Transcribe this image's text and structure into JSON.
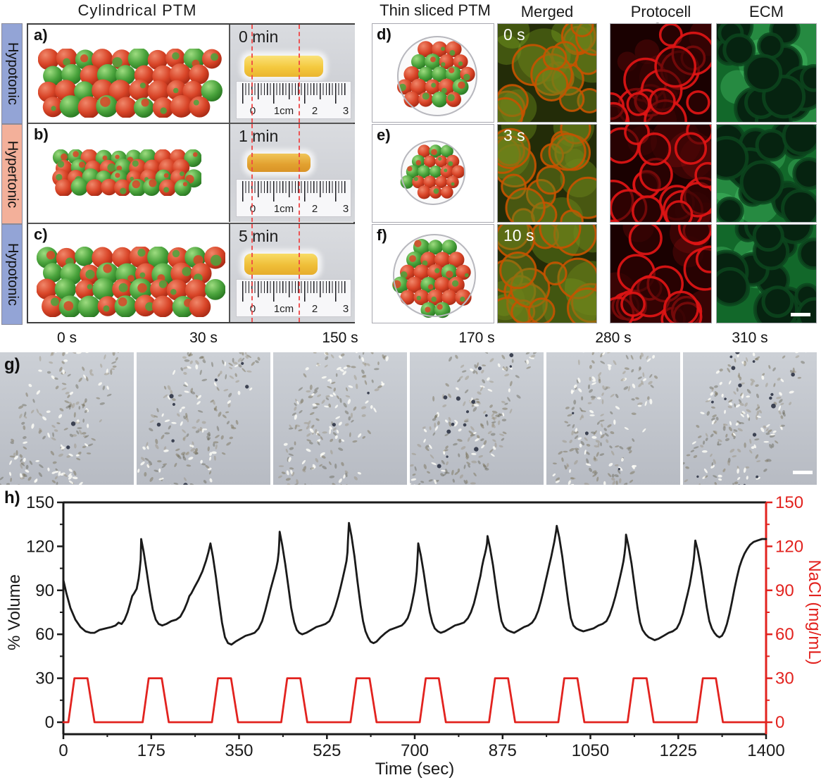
{
  "top": {
    "left": {
      "title": "Cylindrical  PTM",
      "side_labels": [
        {
          "text": "Hypotonic",
          "color": "#93a4d6"
        },
        {
          "text": "Hypertonic",
          "color": "#f3b09a"
        },
        {
          "text": "Hypotonic",
          "color": "#93a4d6"
        }
      ],
      "rows": [
        {
          "label": "a)",
          "time": "0 min"
        },
        {
          "label": "b)",
          "time": "1 min"
        },
        {
          "label": "c)",
          "time": "5 min"
        }
      ],
      "ruler_labels": [
        "0",
        "1cm",
        "2",
        "3"
      ]
    },
    "right": {
      "title": "Thin sliced PTM",
      "col_headers": [
        "Merged",
        "Protocell",
        "ECM"
      ],
      "stray_label": "s",
      "rows": [
        {
          "label": "d)",
          "time": "0 s"
        },
        {
          "label": "e)",
          "time": "3 s"
        },
        {
          "label": "f)",
          "time": "10 s"
        }
      ]
    }
  },
  "panel_g": {
    "label": "g)",
    "times": [
      "0 s",
      "30 s",
      "150 s",
      "170 s",
      "280 s",
      "310 s"
    ]
  },
  "colors": {
    "sphere_red": "#d84427",
    "sphere_green": "#4aa33c",
    "merged_ring": "#c55200",
    "protocell_ring": "#df1515",
    "ecm_green": "#12682a",
    "dashed_line": "#ef4444",
    "axis_black": "#1a1a1a",
    "axis_red": "#e2231f"
  },
  "chart_data": {
    "type": "line",
    "panel_label": "h)",
    "xlabel": "Time (sec)",
    "ylabel_left": "% Volume",
    "ylabel_right": "NaCl (mg/mL)",
    "xlim": [
      0,
      1400
    ],
    "ylim": [
      0,
      150
    ],
    "xticks": [
      0,
      175,
      350,
      525,
      700,
      875,
      1050,
      1225,
      1400
    ],
    "yticks": [
      0,
      30,
      60,
      90,
      120,
      150
    ],
    "legend": "none",
    "grid": false,
    "series": [
      {
        "name": "% Volume",
        "axis": "left",
        "color": "#1a1a1a",
        "points": [
          [
            0,
            97
          ],
          [
            6,
            88
          ],
          [
            14,
            78
          ],
          [
            24,
            70
          ],
          [
            34,
            65
          ],
          [
            44,
            62
          ],
          [
            54,
            61
          ],
          [
            62,
            61
          ],
          [
            72,
            63
          ],
          [
            84,
            64
          ],
          [
            96,
            65
          ],
          [
            104,
            66
          ],
          [
            110,
            68
          ],
          [
            116,
            67
          ],
          [
            122,
            70
          ],
          [
            128,
            75
          ],
          [
            133,
            81
          ],
          [
            137,
            86
          ],
          [
            141,
            88
          ],
          [
            146,
            91
          ],
          [
            150,
            98
          ],
          [
            152,
            104
          ],
          [
            154,
            111
          ],
          [
            155,
            125
          ],
          [
            160,
            116
          ],
          [
            166,
            103
          ],
          [
            172,
            89
          ],
          [
            178,
            77
          ],
          [
            184,
            70
          ],
          [
            190,
            67
          ],
          [
            197,
            66
          ],
          [
            205,
            67
          ],
          [
            215,
            69
          ],
          [
            225,
            70
          ],
          [
            233,
            72
          ],
          [
            241,
            77
          ],
          [
            247,
            82
          ],
          [
            251,
            86
          ],
          [
            255,
            88
          ],
          [
            261,
            92
          ],
          [
            269,
            97
          ],
          [
            277,
            103
          ],
          [
            284,
            110
          ],
          [
            289,
            116
          ],
          [
            293,
            122
          ],
          [
            298,
            113
          ],
          [
            304,
            99
          ],
          [
            310,
            83
          ],
          [
            316,
            68
          ],
          [
            322,
            58
          ],
          [
            328,
            54
          ],
          [
            335,
            53
          ],
          [
            343,
            55
          ],
          [
            353,
            57
          ],
          [
            363,
            59
          ],
          [
            373,
            60
          ],
          [
            381,
            61
          ],
          [
            389,
            64
          ],
          [
            396,
            69
          ],
          [
            402,
            76
          ],
          [
            408,
            84
          ],
          [
            413,
            91
          ],
          [
            417,
            96
          ],
          [
            421,
            101
          ],
          [
            424,
            105
          ],
          [
            427,
            110
          ],
          [
            429,
            116
          ],
          [
            430,
            122
          ],
          [
            431,
            130
          ],
          [
            436,
            121
          ],
          [
            442,
            108
          ],
          [
            448,
            93
          ],
          [
            454,
            78
          ],
          [
            460,
            68
          ],
          [
            465,
            63
          ],
          [
            470,
            61
          ],
          [
            476,
            60
          ],
          [
            484,
            61
          ],
          [
            494,
            63
          ],
          [
            504,
            65
          ],
          [
            514,
            66
          ],
          [
            522,
            67
          ],
          [
            530,
            69
          ],
          [
            536,
            73
          ],
          [
            542,
            79
          ],
          [
            548,
            86
          ],
          [
            553,
            93
          ],
          [
            557,
            99
          ],
          [
            561,
            105
          ],
          [
            564,
            110
          ],
          [
            566,
            116
          ],
          [
            567,
            124
          ],
          [
            568,
            130
          ],
          [
            569,
            136
          ],
          [
            574,
            127
          ],
          [
            580,
            113
          ],
          [
            586,
            96
          ],
          [
            592,
            80
          ],
          [
            597,
            69
          ],
          [
            602,
            62
          ],
          [
            607,
            58
          ],
          [
            612,
            55
          ],
          [
            618,
            54
          ],
          [
            624,
            55
          ],
          [
            632,
            58
          ],
          [
            642,
            61
          ],
          [
            650,
            63
          ],
          [
            658,
            64
          ],
          [
            666,
            65
          ],
          [
            674,
            66
          ],
          [
            680,
            68
          ],
          [
            686,
            71
          ],
          [
            691,
            76
          ],
          [
            695,
            82
          ],
          [
            699,
            89
          ],
          [
            702,
            96
          ],
          [
            704,
            103
          ],
          [
            705,
            109
          ],
          [
            706,
            115
          ],
          [
            707,
            122
          ],
          [
            712,
            114
          ],
          [
            718,
            102
          ],
          [
            724,
            88
          ],
          [
            730,
            75
          ],
          [
            735,
            68
          ],
          [
            740,
            64
          ],
          [
            746,
            62
          ],
          [
            752,
            61
          ],
          [
            760,
            62
          ],
          [
            770,
            64
          ],
          [
            780,
            66
          ],
          [
            790,
            67
          ],
          [
            798,
            68
          ],
          [
            806,
            71
          ],
          [
            812,
            75
          ],
          [
            818,
            81
          ],
          [
            823,
            88
          ],
          [
            827,
            94
          ],
          [
            831,
            100
          ],
          [
            834,
            106
          ],
          [
            837,
            111
          ],
          [
            840,
            115
          ],
          [
            842,
            118
          ],
          [
            844,
            122
          ],
          [
            845,
            127
          ],
          [
            850,
            119
          ],
          [
            856,
            107
          ],
          [
            862,
            92
          ],
          [
            868,
            78
          ],
          [
            873,
            69
          ],
          [
            878,
            65
          ],
          [
            884,
            63
          ],
          [
            890,
            62
          ],
          [
            898,
            61
          ],
          [
            908,
            63
          ],
          [
            918,
            65
          ],
          [
            926,
            66
          ],
          [
            934,
            68
          ],
          [
            940,
            71
          ],
          [
            946,
            76
          ],
          [
            951,
            82
          ],
          [
            956,
            89
          ],
          [
            960,
            95
          ],
          [
            964,
            101
          ],
          [
            968,
            107
          ],
          [
            972,
            113
          ],
          [
            975,
            118
          ],
          [
            978,
            123
          ],
          [
            980,
            127
          ],
          [
            982,
            131
          ],
          [
            983,
            134
          ],
          [
            988,
            126
          ],
          [
            994,
            113
          ],
          [
            1000,
            97
          ],
          [
            1006,
            82
          ],
          [
            1011,
            71
          ],
          [
            1016,
            66
          ],
          [
            1022,
            64
          ],
          [
            1028,
            63
          ],
          [
            1036,
            62
          ],
          [
            1046,
            63
          ],
          [
            1056,
            64
          ],
          [
            1066,
            66
          ],
          [
            1074,
            67
          ],
          [
            1082,
            69
          ],
          [
            1088,
            73
          ],
          [
            1094,
            79
          ],
          [
            1100,
            86
          ],
          [
            1105,
            93
          ],
          [
            1109,
            99
          ],
          [
            1113,
            105
          ],
          [
            1116,
            110
          ],
          [
            1118,
            115
          ],
          [
            1120,
            121
          ],
          [
            1121,
            128
          ],
          [
            1126,
            120
          ],
          [
            1132,
            108
          ],
          [
            1138,
            93
          ],
          [
            1144,
            78
          ],
          [
            1149,
            68
          ],
          [
            1154,
            63
          ],
          [
            1160,
            60
          ],
          [
            1166,
            58
          ],
          [
            1172,
            57
          ],
          [
            1178,
            56
          ],
          [
            1186,
            57
          ],
          [
            1196,
            59
          ],
          [
            1206,
            61
          ],
          [
            1214,
            62
          ],
          [
            1222,
            64
          ],
          [
            1228,
            68
          ],
          [
            1234,
            74
          ],
          [
            1239,
            81
          ],
          [
            1244,
            88
          ],
          [
            1248,
            94
          ],
          [
            1251,
            100
          ],
          [
            1254,
            106
          ],
          [
            1256,
            111
          ],
          [
            1257,
            115
          ],
          [
            1258,
            120
          ],
          [
            1259,
            124
          ],
          [
            1264,
            117
          ],
          [
            1270,
            106
          ],
          [
            1276,
            92
          ],
          [
            1282,
            78
          ],
          [
            1287,
            69
          ],
          [
            1292,
            64
          ],
          [
            1297,
            61
          ],
          [
            1302,
            59
          ],
          [
            1307,
            58
          ],
          [
            1312,
            59
          ],
          [
            1317,
            62
          ],
          [
            1322,
            67
          ],
          [
            1327,
            74
          ],
          [
            1332,
            82
          ],
          [
            1337,
            91
          ],
          [
            1342,
            99
          ],
          [
            1347,
            106
          ],
          [
            1352,
            111
          ],
          [
            1357,
            115
          ],
          [
            1362,
            118
          ],
          [
            1368,
            121
          ],
          [
            1375,
            123
          ],
          [
            1383,
            124
          ],
          [
            1392,
            125
          ],
          [
            1400,
            125
          ]
        ]
      },
      {
        "name": "NaCl",
        "axis": "right",
        "color": "#e2231f",
        "points": [
          [
            0,
            0
          ],
          [
            10,
            0
          ],
          [
            22,
            30
          ],
          [
            48,
            30
          ],
          [
            62,
            0
          ],
          [
            158,
            0
          ],
          [
            170,
            30
          ],
          [
            196,
            30
          ],
          [
            210,
            0
          ],
          [
            296,
            0
          ],
          [
            308,
            30
          ],
          [
            334,
            30
          ],
          [
            348,
            0
          ],
          [
            434,
            0
          ],
          [
            446,
            30
          ],
          [
            472,
            30
          ],
          [
            486,
            0
          ],
          [
            572,
            0
          ],
          [
            584,
            30
          ],
          [
            610,
            30
          ],
          [
            624,
            0
          ],
          [
            710,
            0
          ],
          [
            722,
            30
          ],
          [
            748,
            30
          ],
          [
            762,
            0
          ],
          [
            848,
            0
          ],
          [
            860,
            30
          ],
          [
            886,
            30
          ],
          [
            900,
            0
          ],
          [
            986,
            0
          ],
          [
            998,
            30
          ],
          [
            1024,
            30
          ],
          [
            1038,
            0
          ],
          [
            1124,
            0
          ],
          [
            1136,
            30
          ],
          [
            1162,
            30
          ],
          [
            1176,
            0
          ],
          [
            1262,
            0
          ],
          [
            1274,
            30
          ],
          [
            1300,
            30
          ],
          [
            1314,
            0
          ],
          [
            1400,
            0
          ]
        ]
      }
    ]
  }
}
